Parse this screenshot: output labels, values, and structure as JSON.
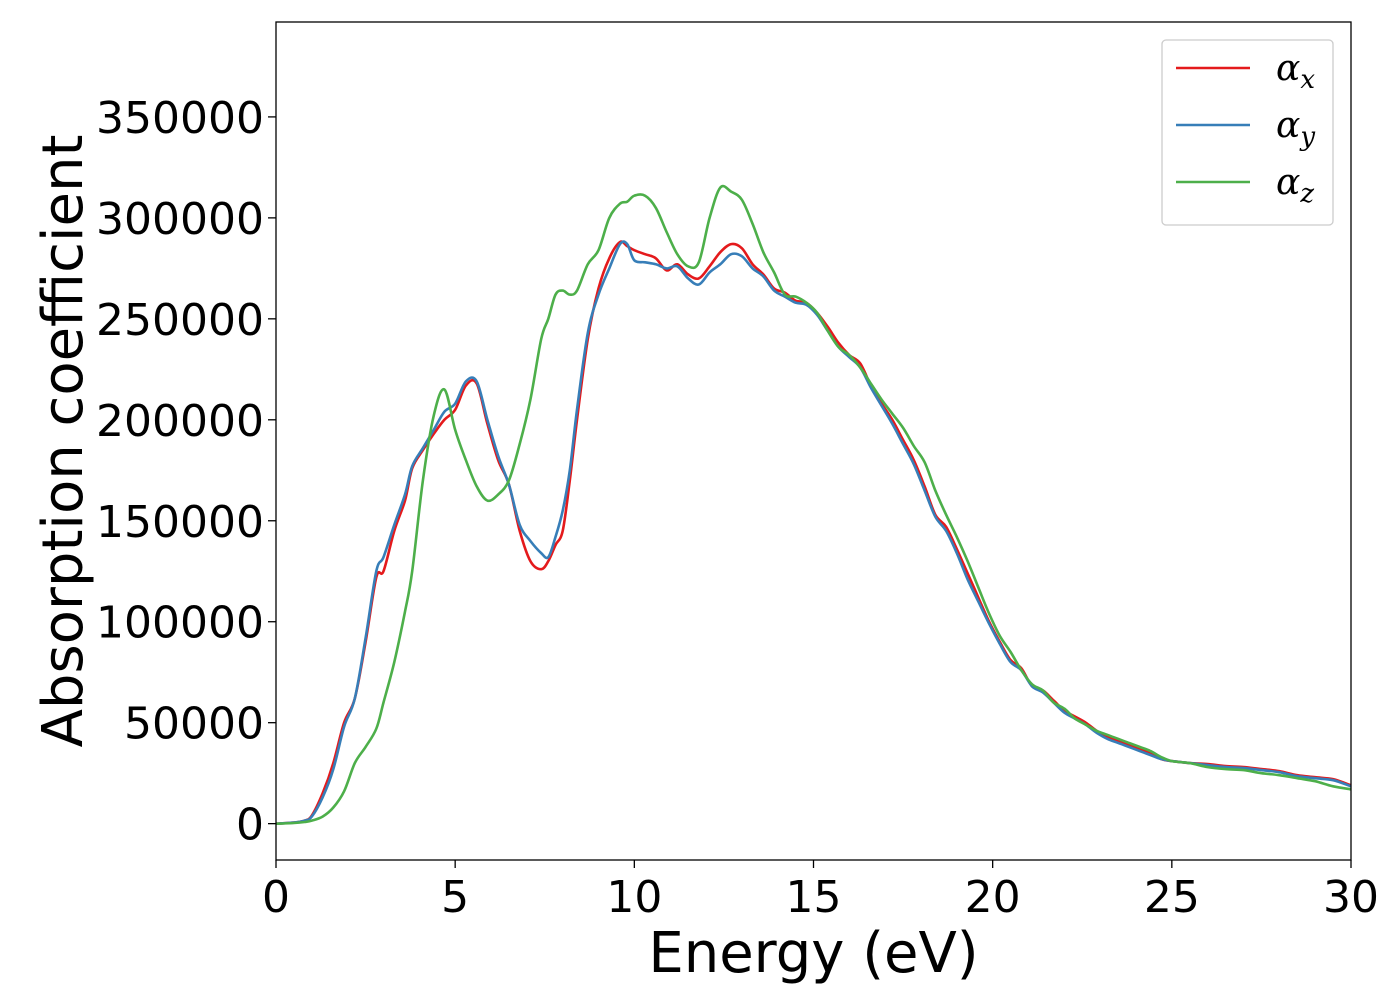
{
  "chart_data": {
    "type": "line",
    "xlabel": "Energy (eV)",
    "ylabel": "Absorption coefficient",
    "xlim": [
      0,
      30
    ],
    "ylim": [
      -18000,
      397000
    ],
    "xticks": [
      0,
      5,
      10,
      15,
      20,
      25,
      30
    ],
    "yticks": [
      0,
      50000,
      100000,
      150000,
      200000,
      250000,
      300000,
      350000
    ],
    "grid": false,
    "legend_position": "top-right",
    "series": [
      {
        "name": "αx",
        "legend_symbol": "α",
        "legend_subscript": "x",
        "color": "#e41a1c",
        "x": [
          0,
          0.5,
          0.8,
          1.0,
          1.3,
          1.6,
          1.9,
          2.2,
          2.5,
          2.8,
          3.0,
          3.3,
          3.6,
          3.8,
          4.1,
          4.4,
          4.7,
          5.0,
          5.3,
          5.6,
          5.9,
          6.2,
          6.5,
          6.8,
          7.1,
          7.4,
          7.6,
          7.8,
          8.0,
          8.2,
          8.4,
          8.7,
          9.0,
          9.3,
          9.6,
          9.8,
          10.0,
          10.3,
          10.6,
          10.9,
          11.2,
          11.5,
          11.8,
          12.1,
          12.4,
          12.7,
          13.0,
          13.3,
          13.6,
          13.9,
          14.2,
          14.5,
          14.8,
          15.1,
          15.4,
          15.7,
          16.0,
          16.3,
          16.6,
          16.9,
          17.2,
          17.5,
          17.8,
          18.1,
          18.4,
          18.7,
          19.0,
          19.3,
          19.6,
          19.9,
          20.2,
          20.5,
          20.8,
          21.1,
          21.4,
          21.7,
          22.0,
          22.3,
          22.6,
          22.9,
          23.2,
          23.5,
          23.8,
          24.1,
          24.4,
          24.7,
          25.0,
          25.5,
          26.0,
          26.5,
          27.0,
          27.5,
          28.0,
          28.5,
          29.0,
          29.5,
          30.0
        ],
        "y": [
          0,
          500,
          1500,
          4000,
          15000,
          30000,
          50000,
          62000,
          90000,
          122000,
          125000,
          145000,
          160000,
          176000,
          185000,
          193000,
          200000,
          205000,
          217000,
          218000,
          198000,
          180000,
          168000,
          145000,
          130000,
          126000,
          130000,
          138000,
          145000,
          170000,
          200000,
          240000,
          265000,
          280000,
          288000,
          286000,
          284000,
          282000,
          280000,
          274000,
          277000,
          272000,
          270000,
          276000,
          283000,
          287000,
          285000,
          277000,
          272000,
          265000,
          263000,
          259000,
          258000,
          253000,
          246000,
          238000,
          232000,
          228000,
          217000,
          208000,
          200000,
          190000,
          180000,
          167000,
          153000,
          147000,
          136000,
          124000,
          112000,
          100000,
          90000,
          81000,
          77000,
          68000,
          66000,
          61000,
          56000,
          53000,
          50000,
          46000,
          43000,
          41000,
          39000,
          37000,
          35000,
          32000,
          31000,
          30000,
          29500,
          28500,
          28000,
          27000,
          26000,
          24000,
          23000,
          22000,
          19000
        ]
      },
      {
        "name": "αy",
        "legend_symbol": "α",
        "legend_subscript": "y",
        "color": "#377eb8",
        "x": [
          0,
          0.5,
          0.8,
          1.0,
          1.3,
          1.6,
          1.9,
          2.2,
          2.5,
          2.8,
          3.0,
          3.3,
          3.6,
          3.8,
          4.1,
          4.4,
          4.7,
          5.0,
          5.3,
          5.6,
          5.9,
          6.2,
          6.5,
          6.8,
          7.1,
          7.4,
          7.6,
          7.8,
          8.0,
          8.2,
          8.4,
          8.7,
          9.0,
          9.3,
          9.6,
          9.8,
          10.0,
          10.3,
          10.6,
          10.9,
          11.2,
          11.5,
          11.8,
          12.1,
          12.4,
          12.7,
          13.0,
          13.3,
          13.6,
          13.9,
          14.2,
          14.5,
          14.8,
          15.1,
          15.4,
          15.7,
          16.0,
          16.3,
          16.6,
          16.9,
          17.2,
          17.5,
          17.8,
          18.1,
          18.4,
          18.7,
          19.0,
          19.3,
          19.6,
          19.9,
          20.2,
          20.5,
          20.8,
          21.1,
          21.4,
          21.7,
          22.0,
          22.3,
          22.6,
          22.9,
          23.2,
          23.5,
          23.8,
          24.1,
          24.4,
          24.7,
          25.0,
          25.5,
          26.0,
          26.5,
          27.0,
          27.5,
          28.0,
          28.5,
          29.0,
          29.5,
          30.0
        ],
        "y": [
          0,
          500,
          1500,
          3500,
          13000,
          27000,
          48000,
          62000,
          92000,
          125000,
          132000,
          148000,
          163000,
          177000,
          186000,
          195000,
          204000,
          208000,
          219000,
          219000,
          200000,
          182000,
          168000,
          148000,
          140000,
          134000,
          132000,
          142000,
          155000,
          175000,
          205000,
          243000,
          262000,
          275000,
          287000,
          287000,
          279000,
          278000,
          277000,
          275000,
          276000,
          270000,
          267000,
          273000,
          277000,
          282000,
          281000,
          275000,
          271000,
          264000,
          261000,
          258000,
          257000,
          252000,
          244000,
          236000,
          231000,
          226000,
          216000,
          207000,
          198000,
          188000,
          178000,
          165000,
          152000,
          145000,
          134000,
          121000,
          110000,
          99000,
          89000,
          80000,
          76000,
          68000,
          65000,
          60000,
          55000,
          52000,
          49000,
          45000,
          42000,
          40000,
          38000,
          36000,
          34000,
          32000,
          31000,
          30000,
          29000,
          28000,
          27500,
          26500,
          25500,
          23500,
          22500,
          21500,
          18500
        ]
      },
      {
        "name": "αz",
        "legend_symbol": "α",
        "legend_subscript": "z",
        "color": "#4daf4a",
        "x": [
          0,
          0.5,
          0.8,
          1.0,
          1.3,
          1.6,
          1.9,
          2.2,
          2.5,
          2.8,
          3.0,
          3.3,
          3.6,
          3.8,
          4.1,
          4.4,
          4.7,
          5.0,
          5.3,
          5.6,
          5.9,
          6.2,
          6.5,
          6.8,
          7.1,
          7.4,
          7.6,
          7.8,
          8.0,
          8.2,
          8.4,
          8.7,
          9.0,
          9.3,
          9.6,
          9.8,
          10.0,
          10.3,
          10.6,
          10.9,
          11.2,
          11.5,
          11.8,
          12.1,
          12.4,
          12.7,
          13.0,
          13.3,
          13.6,
          13.9,
          14.2,
          14.5,
          14.8,
          15.1,
          15.4,
          15.7,
          16.0,
          16.3,
          16.6,
          16.9,
          17.2,
          17.5,
          17.8,
          18.1,
          18.4,
          18.7,
          19.0,
          19.3,
          19.6,
          19.9,
          20.2,
          20.5,
          20.8,
          21.1,
          21.4,
          21.7,
          22.0,
          22.3,
          22.6,
          22.9,
          23.2,
          23.5,
          23.8,
          24.1,
          24.4,
          24.7,
          25.0,
          25.5,
          26.0,
          26.5,
          27.0,
          27.5,
          28.0,
          28.5,
          29.0,
          29.5,
          30.0
        ],
        "y": [
          0,
          300,
          800,
          1500,
          3500,
          8000,
          16000,
          30000,
          38000,
          47000,
          60000,
          80000,
          105000,
          125000,
          170000,
          202000,
          215000,
          195000,
          180000,
          167000,
          160000,
          163000,
          170000,
          188000,
          210000,
          240000,
          250000,
          262000,
          264000,
          262000,
          264000,
          277000,
          284000,
          300000,
          307000,
          308000,
          311000,
          311000,
          305000,
          293000,
          282000,
          276000,
          278000,
          300000,
          315000,
          313000,
          309000,
          297000,
          283000,
          273000,
          262000,
          261000,
          258000,
          253000,
          244000,
          236000,
          232000,
          226000,
          218000,
          210000,
          203000,
          196000,
          187000,
          179000,
          165000,
          153000,
          142000,
          130000,
          117000,
          104000,
          93000,
          85000,
          76000,
          69000,
          66000,
          60000,
          57000,
          52000,
          49000,
          46000,
          44000,
          42000,
          40000,
          38000,
          36000,
          33000,
          31000,
          30000,
          28000,
          27000,
          26500,
          25000,
          24000,
          22500,
          21000,
          18500,
          17000
        ]
      }
    ]
  }
}
